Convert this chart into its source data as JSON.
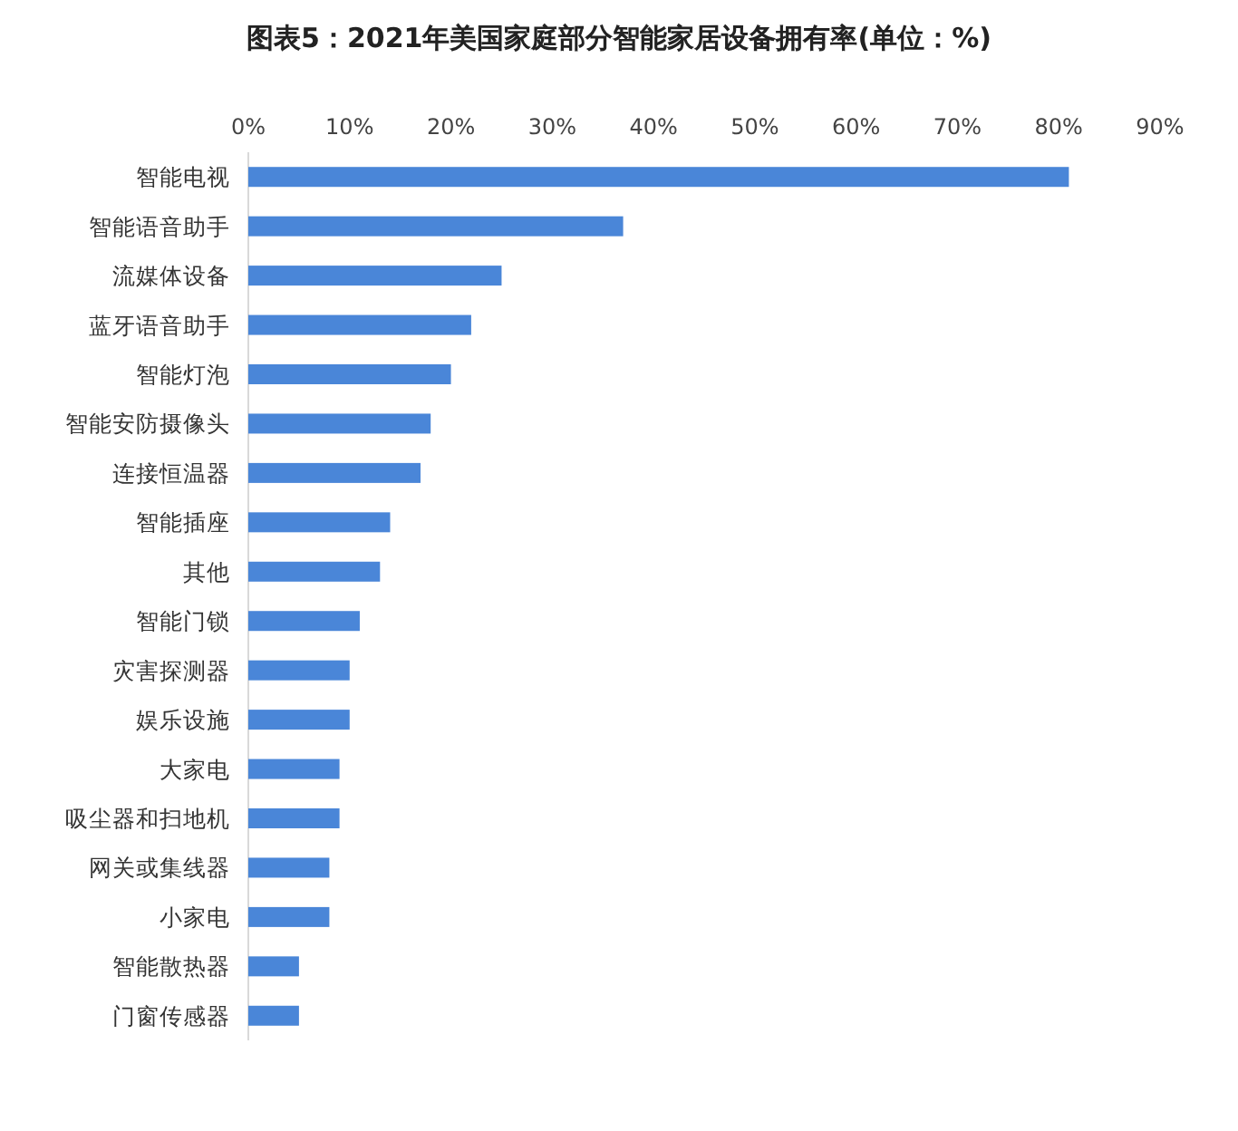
{
  "chart_data": {
    "type": "bar",
    "orientation": "horizontal",
    "title": "图表5：2021年美国家庭部分智能家居设备拥有率(单位：%)",
    "categories": [
      "智能电视",
      "智能语音助手",
      "流媒体设备",
      "蓝牙语音助手",
      "智能灯泡",
      "智能安防摄像头",
      "连接恒温器",
      "智能插座",
      "其他",
      "智能门锁",
      "灾害探测器",
      "娱乐设施",
      "大家电",
      "吸尘器和扫地机",
      "网关或集线器",
      "小家电",
      "智能散热器",
      "门窗传感器"
    ],
    "values": [
      81,
      37,
      25,
      22,
      20,
      18,
      17,
      14,
      13,
      11,
      10,
      10,
      9,
      9,
      8,
      8,
      5,
      5
    ],
    "color": "#4a86d8",
    "xlim": [
      0,
      90
    ],
    "xticks": [
      {
        "value": 0,
        "label": "0%"
      },
      {
        "value": 10,
        "label": "10%"
      },
      {
        "value": 20,
        "label": "20%"
      },
      {
        "value": 30,
        "label": "30%"
      },
      {
        "value": 40,
        "label": "40%"
      },
      {
        "value": 50,
        "label": "50%"
      },
      {
        "value": 60,
        "label": "60%"
      },
      {
        "value": 70,
        "label": "70%"
      },
      {
        "value": 80,
        "label": "80%"
      },
      {
        "value": 90,
        "label": "90%"
      }
    ]
  }
}
